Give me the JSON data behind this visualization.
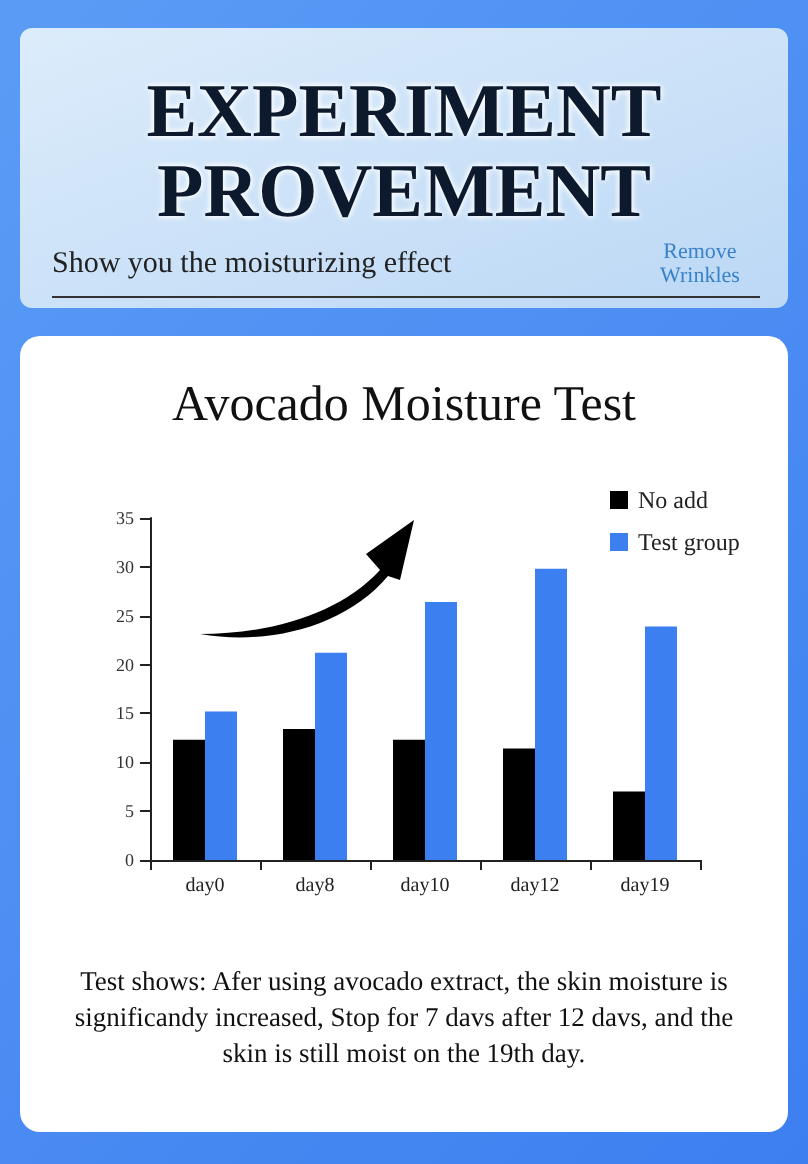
{
  "chart_data": {
    "type": "bar",
    "title": "Avocado Moisture Test",
    "annotations": [
      "EXPERIMENT PROVEMENT",
      "Show you the moisturizing effect",
      "Remove Wrinkles",
      "Test shows: Afer using avocado extract, the skin moisture is significandy increased, Stop for 7 davs after 12 davs, and the skin is still moist on the 19th day."
    ],
    "categories": [
      "day0",
      "day8",
      "day10",
      "day12",
      "day19"
    ],
    "series": [
      {
        "name": "No add",
        "color": "#000000",
        "values": [
          12.3,
          13.4,
          12.3,
          11.4,
          7
        ]
      },
      {
        "name": "Test group",
        "color": "#3b7ff0",
        "values": [
          15.2,
          21.2,
          26.4,
          29.8,
          23.9
        ]
      }
    ],
    "ylim": [
      0,
      35
    ],
    "yticks": [
      0,
      5,
      10,
      15,
      20,
      25,
      30,
      35
    ],
    "grid": false,
    "legend": "top right"
  }
}
